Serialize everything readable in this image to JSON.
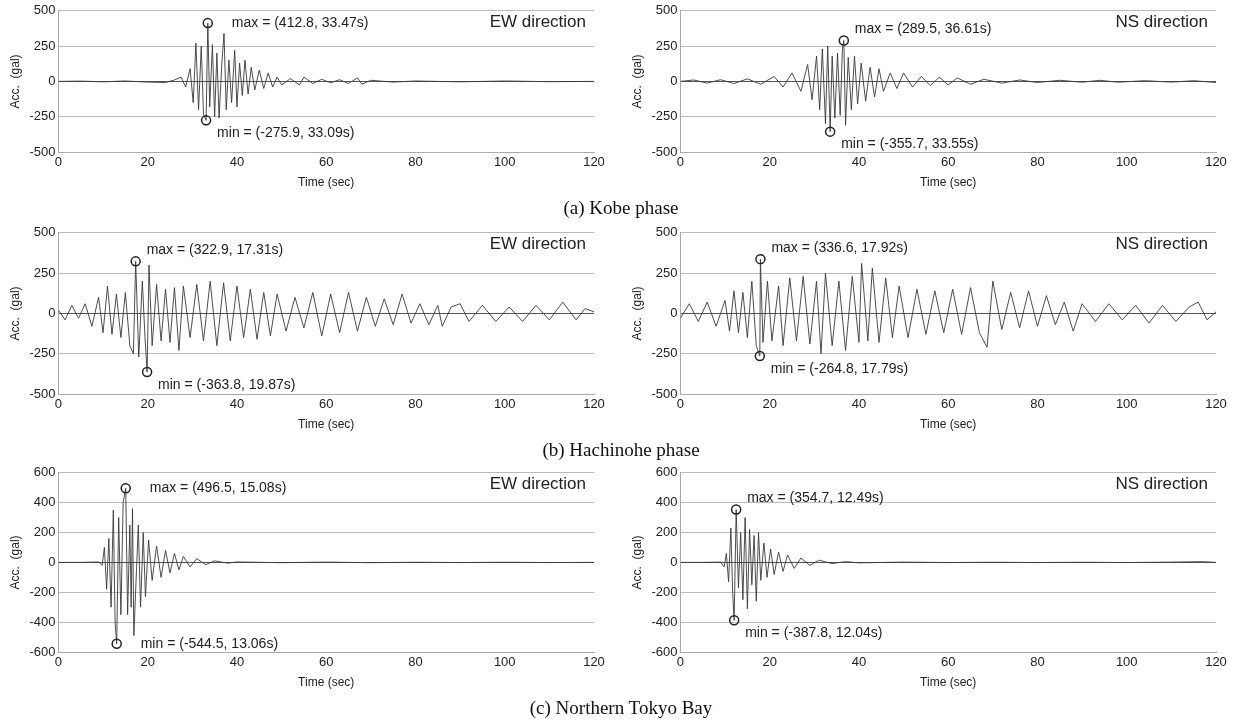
{
  "chart_data": [
    {
      "type": "line",
      "title": "EW direction",
      "xlabel": "Time (sec)",
      "ylabel": "Acc.  (gal)",
      "xlim": [
        0,
        120
      ],
      "xticks": [
        0,
        20,
        40,
        60,
        80,
        100,
        120
      ],
      "ylim": [
        -500,
        500
      ],
      "yticks": [
        -500,
        -250,
        0,
        250,
        500
      ],
      "grid": "y",
      "marker": "none",
      "series": [
        {
          "color": "#3a3a3a",
          "x": [
            0,
            5,
            10,
            15,
            20,
            24,
            26,
            27.5,
            28.5,
            29.5,
            30.2,
            30.8,
            31.4,
            32,
            32.5,
            33.09,
            33.47,
            33.9,
            34.5,
            35,
            35.5,
            36,
            36.6,
            37.1,
            37.6,
            38.2,
            38.8,
            39.5,
            40,
            40.6,
            41.2,
            41.8,
            42.5,
            43.2,
            44,
            45,
            46,
            47,
            48,
            49,
            50,
            52,
            54,
            55,
            57,
            59,
            61,
            63,
            65,
            67,
            68,
            70,
            75,
            80,
            90,
            100,
            110,
            120
          ],
          "values": [
            0,
            2,
            -3,
            3,
            -5,
            -8,
            10,
            30,
            -40,
            90,
            -150,
            270,
            -200,
            250,
            -230,
            -275.9,
            412.8,
            -180,
            260,
            -250,
            200,
            -260,
            120,
            340,
            -200,
            150,
            -150,
            220,
            -180,
            130,
            -100,
            150,
            -90,
            100,
            -60,
            80,
            -50,
            60,
            -40,
            30,
            -25,
            20,
            -25,
            30,
            -15,
            15,
            -10,
            12,
            -15,
            25,
            -20,
            8,
            -5,
            3,
            -3,
            3,
            -2,
            0
          ]
        }
      ],
      "annotations": [
        {
          "text": "max = (412.8, 33.47s)",
          "x": 33.47,
          "y": 412.8
        },
        {
          "text": "min = (-275.9, 33.09s)",
          "x": 33.09,
          "y": -275.9
        },
        "(a) Kobe phase"
      ]
    },
    {
      "type": "line",
      "title": "NS direction",
      "xlabel": "Time (sec)",
      "ylabel": "Acc.  (gal)",
      "xlim": [
        0,
        120
      ],
      "xticks": [
        0,
        20,
        40,
        60,
        80,
        100,
        120
      ],
      "ylim": [
        -500,
        500
      ],
      "yticks": [
        -500,
        -250,
        0,
        250,
        500
      ],
      "grid": "y",
      "marker": "none",
      "series": [
        {
          "color": "#3a3a3a",
          "x": [
            0,
            3,
            6,
            9,
            12,
            15,
            18,
            21,
            23,
            25,
            27,
            28.5,
            29.5,
            30.5,
            31.2,
            31.8,
            32.5,
            33,
            33.55,
            34,
            34.6,
            35.2,
            35.8,
            36.3,
            36.61,
            37,
            37.6,
            38.3,
            39,
            39.7,
            40.5,
            41.5,
            42.5,
            43.5,
            44.5,
            45.5,
            47,
            48.5,
            50,
            52,
            54,
            56,
            58,
            60,
            62,
            65,
            68,
            72,
            76,
            80,
            85,
            90,
            94,
            98,
            104,
            110,
            115,
            120
          ],
          "values": [
            0,
            10,
            -12,
            12,
            -15,
            18,
            -20,
            35,
            -40,
            60,
            -70,
            120,
            -130,
            180,
            -200,
            230,
            -300,
            250,
            -355.7,
            180,
            -260,
            200,
            -240,
            230,
            289.5,
            -310,
            170,
            -200,
            180,
            -160,
            130,
            -140,
            100,
            -110,
            90,
            -70,
            60,
            -50,
            60,
            -40,
            35,
            -30,
            30,
            -25,
            25,
            -20,
            15,
            -12,
            10,
            -8,
            8,
            -6,
            8,
            -6,
            5,
            -5,
            5,
            -8
          ]
        }
      ],
      "annotations": [
        {
          "text": "max = (289.5, 36.61s)",
          "x": 36.61,
          "y": 289.5
        },
        {
          "text": "min = (-355.7, 33.55s)",
          "x": 33.55,
          "y": -355.7
        }
      ]
    },
    {
      "type": "line",
      "title": "EW direction",
      "xlabel": "Time (sec)",
      "ylabel": "Acc.  (gal)",
      "xlim": [
        0,
        120
      ],
      "xticks": [
        0,
        20,
        40,
        60,
        80,
        100,
        120
      ],
      "ylim": [
        -500,
        500
      ],
      "yticks": [
        -500,
        -250,
        0,
        250,
        500
      ],
      "grid": "y",
      "marker": "none",
      "series": [
        {
          "color": "#3a3a3a",
          "x": [
            0,
            1.5,
            3,
            4.5,
            6,
            7.5,
            9,
            10,
            11,
            12,
            13,
            14,
            15,
            16,
            16.8,
            17.31,
            18,
            18.8,
            19.4,
            19.87,
            20.3,
            21,
            22,
            23,
            24,
            25,
            26,
            27,
            28,
            29.5,
            31,
            32.5,
            34,
            35.5,
            37,
            38.5,
            40,
            41.5,
            43,
            44.5,
            46,
            47.5,
            49,
            51,
            53,
            55,
            57,
            59,
            61,
            63,
            65,
            67,
            69,
            71,
            73,
            75,
            77,
            79,
            81,
            83,
            85,
            86,
            88,
            90,
            92,
            95,
            98,
            101,
            104,
            107,
            110,
            113,
            116,
            118,
            120
          ],
          "values": [
            20,
            -40,
            50,
            -30,
            60,
            -80,
            100,
            -120,
            170,
            -130,
            120,
            -150,
            130,
            -200,
            -250,
            322.9,
            -270,
            200,
            -150,
            -363.8,
            300,
            -200,
            180,
            -170,
            150,
            -180,
            160,
            -230,
            170,
            -150,
            180,
            -170,
            200,
            -200,
            190,
            -170,
            170,
            -150,
            150,
            -160,
            130,
            -140,
            120,
            -110,
            100,
            -90,
            130,
            -140,
            120,
            -120,
            130,
            -110,
            100,
            -80,
            90,
            -70,
            120,
            -60,
            60,
            -70,
            50,
            -80,
            40,
            60,
            -50,
            50,
            -50,
            40,
            -50,
            50,
            -40,
            70,
            -40,
            30,
            10
          ]
        }
      ],
      "annotations": [
        {
          "text": "max = (322.9, 17.31s)",
          "x": 17.31,
          "y": 322.9
        },
        {
          "text": "min = (-363.8, 19.87s)",
          "x": 19.87,
          "y": -363.8
        },
        "(b) Hachinohe phase"
      ]
    },
    {
      "type": "line",
      "title": "NS direction",
      "xlabel": "Time (sec)",
      "ylabel": "Acc.  (gal)",
      "xlim": [
        0,
        120
      ],
      "xticks": [
        0,
        20,
        40,
        60,
        80,
        100,
        120
      ],
      "ylim": [
        -500,
        500
      ],
      "yticks": [
        -500,
        -250,
        0,
        250,
        500
      ],
      "grid": "y",
      "marker": "none",
      "series": [
        {
          "color": "#3a3a3a",
          "x": [
            0,
            2,
            4,
            6,
            8,
            10,
            11,
            12,
            13,
            14,
            15,
            16,
            17,
            17.79,
            17.92,
            18.5,
            19.5,
            20.5,
            22,
            23,
            24.5,
            26,
            27.5,
            29,
            30.5,
            31.5,
            32.5,
            34,
            35.5,
            37,
            38.5,
            40,
            40.6,
            42,
            43,
            44.5,
            46,
            47.5,
            49,
            51,
            53,
            55,
            57,
            59,
            61,
            63,
            65,
            67,
            68.7,
            70,
            72,
            74,
            76,
            78,
            80,
            82,
            84,
            86,
            88,
            90,
            93,
            96,
            99,
            102,
            105,
            108,
            111,
            114,
            116,
            118,
            120
          ],
          "values": [
            -30,
            60,
            -50,
            70,
            -80,
            80,
            -110,
            140,
            -120,
            130,
            -150,
            200,
            -200,
            -264.8,
            336.6,
            -180,
            200,
            -170,
            170,
            -200,
            220,
            -170,
            230,
            -190,
            200,
            -250,
            250,
            -200,
            200,
            -230,
            230,
            -180,
            310,
            -170,
            280,
            -180,
            220,
            -150,
            170,
            -150,
            150,
            -130,
            140,
            -120,
            150,
            -130,
            160,
            -120,
            -210,
            200,
            -100,
            130,
            -90,
            140,
            -80,
            110,
            -70,
            70,
            -110,
            60,
            -50,
            60,
            -40,
            50,
            -60,
            50,
            -50,
            40,
            70,
            -40,
            10
          ]
        }
      ],
      "annotations": [
        {
          "text": "max = (336.6, 17.92s)",
          "x": 17.92,
          "y": 336.6
        },
        {
          "text": "min = (-264.8, 17.79s)",
          "x": 17.79,
          "y": -264.8
        }
      ]
    },
    {
      "type": "line",
      "title": "EW direction",
      "xlabel": "Time (sec)",
      "ylabel": "Acc.  (gal)",
      "xlim": [
        0,
        120
      ],
      "xticks": [
        0,
        20,
        40,
        60,
        80,
        100,
        120
      ],
      "ylim": [
        -600,
        600
      ],
      "yticks": [
        -600,
        -400,
        -200,
        0,
        200,
        400,
        600
      ],
      "grid": "y",
      "marker": "none",
      "series": [
        {
          "color": "#3a3a3a",
          "x": [
            0,
            5,
            9,
            9.8,
            10.3,
            10.8,
            11.3,
            11.8,
            12.3,
            12.7,
            13.06,
            13.5,
            14,
            14.5,
            15.08,
            15.5,
            16,
            16.3,
            16.6,
            16.9,
            17.9,
            18.4,
            19,
            19.5,
            20.2,
            21,
            22,
            23,
            24,
            25,
            26,
            27,
            28,
            29.5,
            31,
            33,
            35,
            38,
            40,
            50,
            60,
            70,
            80,
            90,
            100,
            110,
            120
          ],
          "values": [
            0,
            0,
            3,
            -20,
            100,
            -180,
            160,
            -300,
            350,
            -400,
            -544.5,
            300,
            -350,
            400,
            496.5,
            -350,
            250,
            -300,
            360,
            -490,
            250,
            -300,
            200,
            -230,
            150,
            -120,
            110,
            -100,
            80,
            -70,
            60,
            -50,
            40,
            -30,
            25,
            -15,
            10,
            -5,
            3,
            -2,
            2,
            -2,
            1,
            -1,
            1,
            -1,
            0
          ]
        }
      ],
      "annotations": [
        {
          "text": "max = (496.5, 15.08s)",
          "x": 15.08,
          "y": 496.5
        },
        {
          "text": "min = (-544.5, 13.06s)",
          "x": 13.06,
          "y": -544.5
        },
        "(c) Northern Tokyo Bay"
      ]
    },
    {
      "type": "line",
      "title": "NS direction",
      "xlabel": "Time (sec)",
      "ylabel": "Acc.  (gal)",
      "xlim": [
        0,
        120
      ],
      "xticks": [
        0,
        20,
        40,
        60,
        80,
        100,
        120
      ],
      "ylim": [
        -600,
        600
      ],
      "yticks": [
        -600,
        -400,
        -200,
        0,
        200,
        400,
        600
      ],
      "grid": "y",
      "marker": "none",
      "series": [
        {
          "color": "#3a3a3a",
          "x": [
            0,
            5,
            9,
            9.8,
            10.3,
            10.8,
            11.3,
            11.7,
            12.04,
            12.49,
            13,
            13.5,
            14,
            14.5,
            15,
            15.5,
            16,
            16.5,
            17,
            17.5,
            18,
            18.7,
            19.4,
            20.2,
            21,
            22,
            23,
            24,
            25.5,
            27,
            29,
            31,
            34,
            37,
            40,
            50,
            60,
            70,
            80,
            90,
            100,
            110,
            117,
            120
          ],
          "values": [
            0,
            0,
            2,
            -30,
            60,
            -130,
            230,
            -200,
            -387.8,
            354.7,
            -170,
            200,
            -250,
            300,
            -310,
            220,
            -150,
            180,
            -260,
            200,
            -120,
            130,
            -100,
            90,
            -80,
            70,
            -60,
            50,
            -40,
            30,
            -20,
            15,
            -8,
            5,
            -3,
            2,
            -1,
            1,
            -1,
            1,
            -1,
            2,
            5,
            0
          ]
        }
      ],
      "annotations": [
        {
          "text": "max = (354.7, 12.49s)",
          "x": 12.49,
          "y": 354.7
        },
        {
          "text": "min = (-387.8, 12.04s)",
          "x": 12.04,
          "y": -387.8
        }
      ]
    }
  ]
}
